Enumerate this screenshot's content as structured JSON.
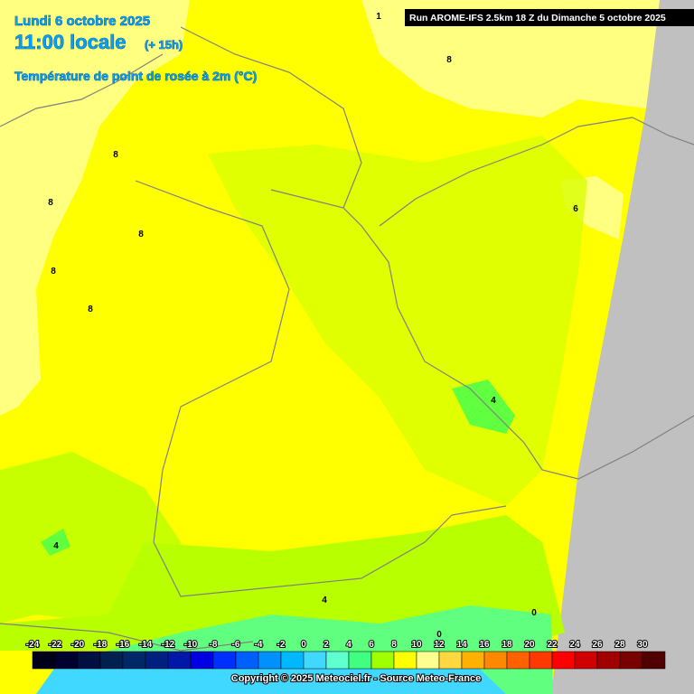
{
  "header": {
    "date": "Lundi 6 octobre 2025",
    "time": "11:00 locale",
    "lead": "(+ 15h)",
    "parameter": "Température de point de rosée à 2m (°C)"
  },
  "run": "Run AROME-IFS 2.5km 18 Z du Dimanche 5 octobre 2025",
  "legend": {
    "ticks": [
      -24,
      -22,
      -20,
      -18,
      -16,
      -14,
      -12,
      -10,
      -8,
      -6,
      -4,
      -2,
      0,
      2,
      4,
      6,
      8,
      10,
      12,
      14,
      16,
      18,
      20,
      22,
      24,
      26,
      28,
      30
    ],
    "colors": [
      "#000018",
      "#000030",
      "#001040",
      "#002050",
      "#002868",
      "#002080",
      "#0018a8",
      "#0000e0",
      "#0030ff",
      "#0060ff",
      "#0090ff",
      "#00b8ff",
      "#40d8ff",
      "#60ffd0",
      "#40ff80",
      "#a0ff00",
      "#ffff00",
      "#ffff90",
      "#ffd840",
      "#ffb000",
      "#ff8800",
      "#ff6000",
      "#ff3800",
      "#ff0000",
      "#d00000",
      "#a00000",
      "#780000",
      "#500000"
    ]
  },
  "contour_labels": [
    "1",
    "8",
    "8",
    "8",
    "8",
    "8",
    "8",
    "6",
    "4",
    "4",
    "4",
    "0",
    "0"
  ],
  "copyright": "Copyright © 2025 Meteociel.fr - Source Meteo-France"
}
